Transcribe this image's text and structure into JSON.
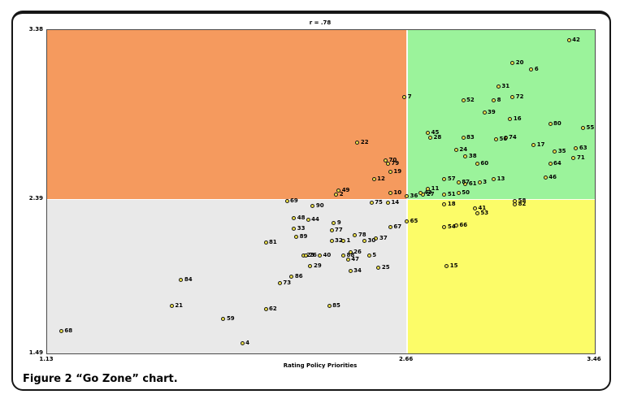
{
  "figure": {
    "caption": "Figure 2 “Go Zone” chart."
  },
  "chart_data": {
    "type": "scatter",
    "title": "r = .78",
    "xlabel": "Rating Policy Priorities",
    "ylabel": "Rating Research Priorities",
    "xlim": [
      1.13,
      3.46
    ],
    "ylim": [
      1.49,
      3.38
    ],
    "xticks": [
      1.13,
      2.66,
      3.46
    ],
    "yticks": [
      1.49,
      2.39,
      3.38
    ],
    "dividers": {
      "x": 2.66,
      "y": 2.39
    },
    "grid": false,
    "legend": false,
    "quadrant_colors": {
      "top_left": "#F59A5E",
      "top_right": "#9BF39B",
      "bottom_left": "#E9E9E9",
      "bottom_right": "#FCFC68"
    },
    "marker_style": {
      "fill": "#EFE24A",
      "stroke": "#161616"
    },
    "points": [
      {
        "label": "1",
        "x": 2.39,
        "y": 2.15
      },
      {
        "label": "2",
        "x": 2.36,
        "y": 2.42
      },
      {
        "label": "3",
        "x": 2.97,
        "y": 2.49
      },
      {
        "label": "4",
        "x": 1.96,
        "y": 1.55
      },
      {
        "label": "5",
        "x": 2.5,
        "y": 2.06
      },
      {
        "label": "6",
        "x": 3.19,
        "y": 3.15
      },
      {
        "label": "7",
        "x": 2.65,
        "y": 2.99
      },
      {
        "label": "8",
        "x": 3.03,
        "y": 2.97
      },
      {
        "label": "9",
        "x": 2.35,
        "y": 2.25
      },
      {
        "label": "10",
        "x": 2.59,
        "y": 2.43
      },
      {
        "label": "11",
        "x": 2.75,
        "y": 2.45
      },
      {
        "label": "12",
        "x": 2.52,
        "y": 2.51
      },
      {
        "label": "13",
        "x": 3.03,
        "y": 2.51
      },
      {
        "label": "14",
        "x": 2.58,
        "y": 2.37
      },
      {
        "label": "15",
        "x": 2.83,
        "y": 2.0
      },
      {
        "label": "16",
        "x": 3.1,
        "y": 2.86
      },
      {
        "label": "17",
        "x": 3.2,
        "y": 2.71
      },
      {
        "label": "18",
        "x": 2.82,
        "y": 2.36
      },
      {
        "label": "19",
        "x": 2.59,
        "y": 2.55
      },
      {
        "label": "20",
        "x": 3.11,
        "y": 3.19
      },
      {
        "label": "21",
        "x": 1.66,
        "y": 1.77
      },
      {
        "label": "22",
        "x": 2.45,
        "y": 2.72
      },
      {
        "label": "23",
        "x": 2.22,
        "y": 2.06
      },
      {
        "label": "24",
        "x": 2.87,
        "y": 2.68
      },
      {
        "label": "25",
        "x": 2.54,
        "y": 1.99
      },
      {
        "label": "26",
        "x": 2.42,
        "y": 2.08
      },
      {
        "label": "27",
        "x": 2.73,
        "y": 2.42
      },
      {
        "label": "28",
        "x": 2.76,
        "y": 2.75
      },
      {
        "label": "29",
        "x": 2.25,
        "y": 2.0
      },
      {
        "label": "30",
        "x": 2.48,
        "y": 2.15
      },
      {
        "label": "31",
        "x": 3.05,
        "y": 3.05
      },
      {
        "label": "32",
        "x": 2.34,
        "y": 2.15
      },
      {
        "label": "33",
        "x": 2.18,
        "y": 2.22
      },
      {
        "label": "34",
        "x": 2.42,
        "y": 1.97
      },
      {
        "label": "35",
        "x": 3.29,
        "y": 2.67
      },
      {
        "label": "36",
        "x": 2.66,
        "y": 2.41
      },
      {
        "label": "37",
        "x": 2.53,
        "y": 2.16
      },
      {
        "label": "38",
        "x": 2.91,
        "y": 2.64
      },
      {
        "label": "39",
        "x": 2.99,
        "y": 2.9
      },
      {
        "label": "40",
        "x": 2.29,
        "y": 2.06
      },
      {
        "label": "41",
        "x": 2.95,
        "y": 2.34
      },
      {
        "label": "42",
        "x": 3.35,
        "y": 3.32
      },
      {
        "label": "43",
        "x": 2.72,
        "y": 2.43
      },
      {
        "label": "44",
        "x": 2.24,
        "y": 2.27
      },
      {
        "label": "45",
        "x": 2.75,
        "y": 2.78
      },
      {
        "label": "46",
        "x": 3.25,
        "y": 2.52
      },
      {
        "label": "47",
        "x": 2.41,
        "y": 2.04
      },
      {
        "label": "48",
        "x": 2.18,
        "y": 2.28
      },
      {
        "label": "49",
        "x": 2.37,
        "y": 2.44
      },
      {
        "label": "50",
        "x": 2.88,
        "y": 2.43
      },
      {
        "label": "51",
        "x": 2.82,
        "y": 2.42
      },
      {
        "label": "52",
        "x": 2.9,
        "y": 2.97
      },
      {
        "label": "53",
        "x": 2.96,
        "y": 2.31
      },
      {
        "label": "54",
        "x": 2.82,
        "y": 2.23
      },
      {
        "label": "55",
        "x": 3.41,
        "y": 2.81
      },
      {
        "label": "56",
        "x": 3.04,
        "y": 2.74
      },
      {
        "label": "57",
        "x": 2.82,
        "y": 2.51
      },
      {
        "label": "58",
        "x": 3.12,
        "y": 2.38
      },
      {
        "label": "59",
        "x": 1.88,
        "y": 1.69
      },
      {
        "label": "60",
        "x": 2.96,
        "y": 2.6
      },
      {
        "label": "61",
        "x": 2.91,
        "y": 2.48
      },
      {
        "label": "62",
        "x": 2.06,
        "y": 1.75
      },
      {
        "label": "63",
        "x": 3.38,
        "y": 2.69
      },
      {
        "label": "64",
        "x": 3.27,
        "y": 2.6
      },
      {
        "label": "65",
        "x": 2.66,
        "y": 2.26
      },
      {
        "label": "66",
        "x": 2.87,
        "y": 2.24
      },
      {
        "label": "67",
        "x": 2.59,
        "y": 2.23
      },
      {
        "label": "68",
        "x": 1.19,
        "y": 1.62
      },
      {
        "label": "69",
        "x": 2.15,
        "y": 2.38
      },
      {
        "label": "70",
        "x": 2.57,
        "y": 2.62
      },
      {
        "label": "71",
        "x": 3.37,
        "y": 2.63
      },
      {
        "label": "72",
        "x": 3.11,
        "y": 2.99
      },
      {
        "label": "73",
        "x": 2.12,
        "y": 1.9
      },
      {
        "label": "74",
        "x": 3.08,
        "y": 2.75
      },
      {
        "label": "75",
        "x": 2.51,
        "y": 2.37
      },
      {
        "label": "76",
        "x": 2.23,
        "y": 2.06
      },
      {
        "label": "77",
        "x": 2.34,
        "y": 2.21
      },
      {
        "label": "78",
        "x": 2.44,
        "y": 2.18
      },
      {
        "label": "79",
        "x": 2.58,
        "y": 2.6
      },
      {
        "label": "80",
        "x": 3.27,
        "y": 2.83
      },
      {
        "label": "81",
        "x": 2.06,
        "y": 2.14
      },
      {
        "label": "82",
        "x": 3.12,
        "y": 2.36
      },
      {
        "label": "83",
        "x": 2.9,
        "y": 2.75
      },
      {
        "label": "84",
        "x": 1.7,
        "y": 1.92
      },
      {
        "label": "85",
        "x": 2.33,
        "y": 1.77
      },
      {
        "label": "86",
        "x": 2.17,
        "y": 1.94
      },
      {
        "label": "87",
        "x": 2.88,
        "y": 2.49
      },
      {
        "label": "88",
        "x": 2.39,
        "y": 2.06
      },
      {
        "label": "89",
        "x": 2.19,
        "y": 2.17
      },
      {
        "label": "90",
        "x": 2.26,
        "y": 2.35
      }
    ]
  }
}
